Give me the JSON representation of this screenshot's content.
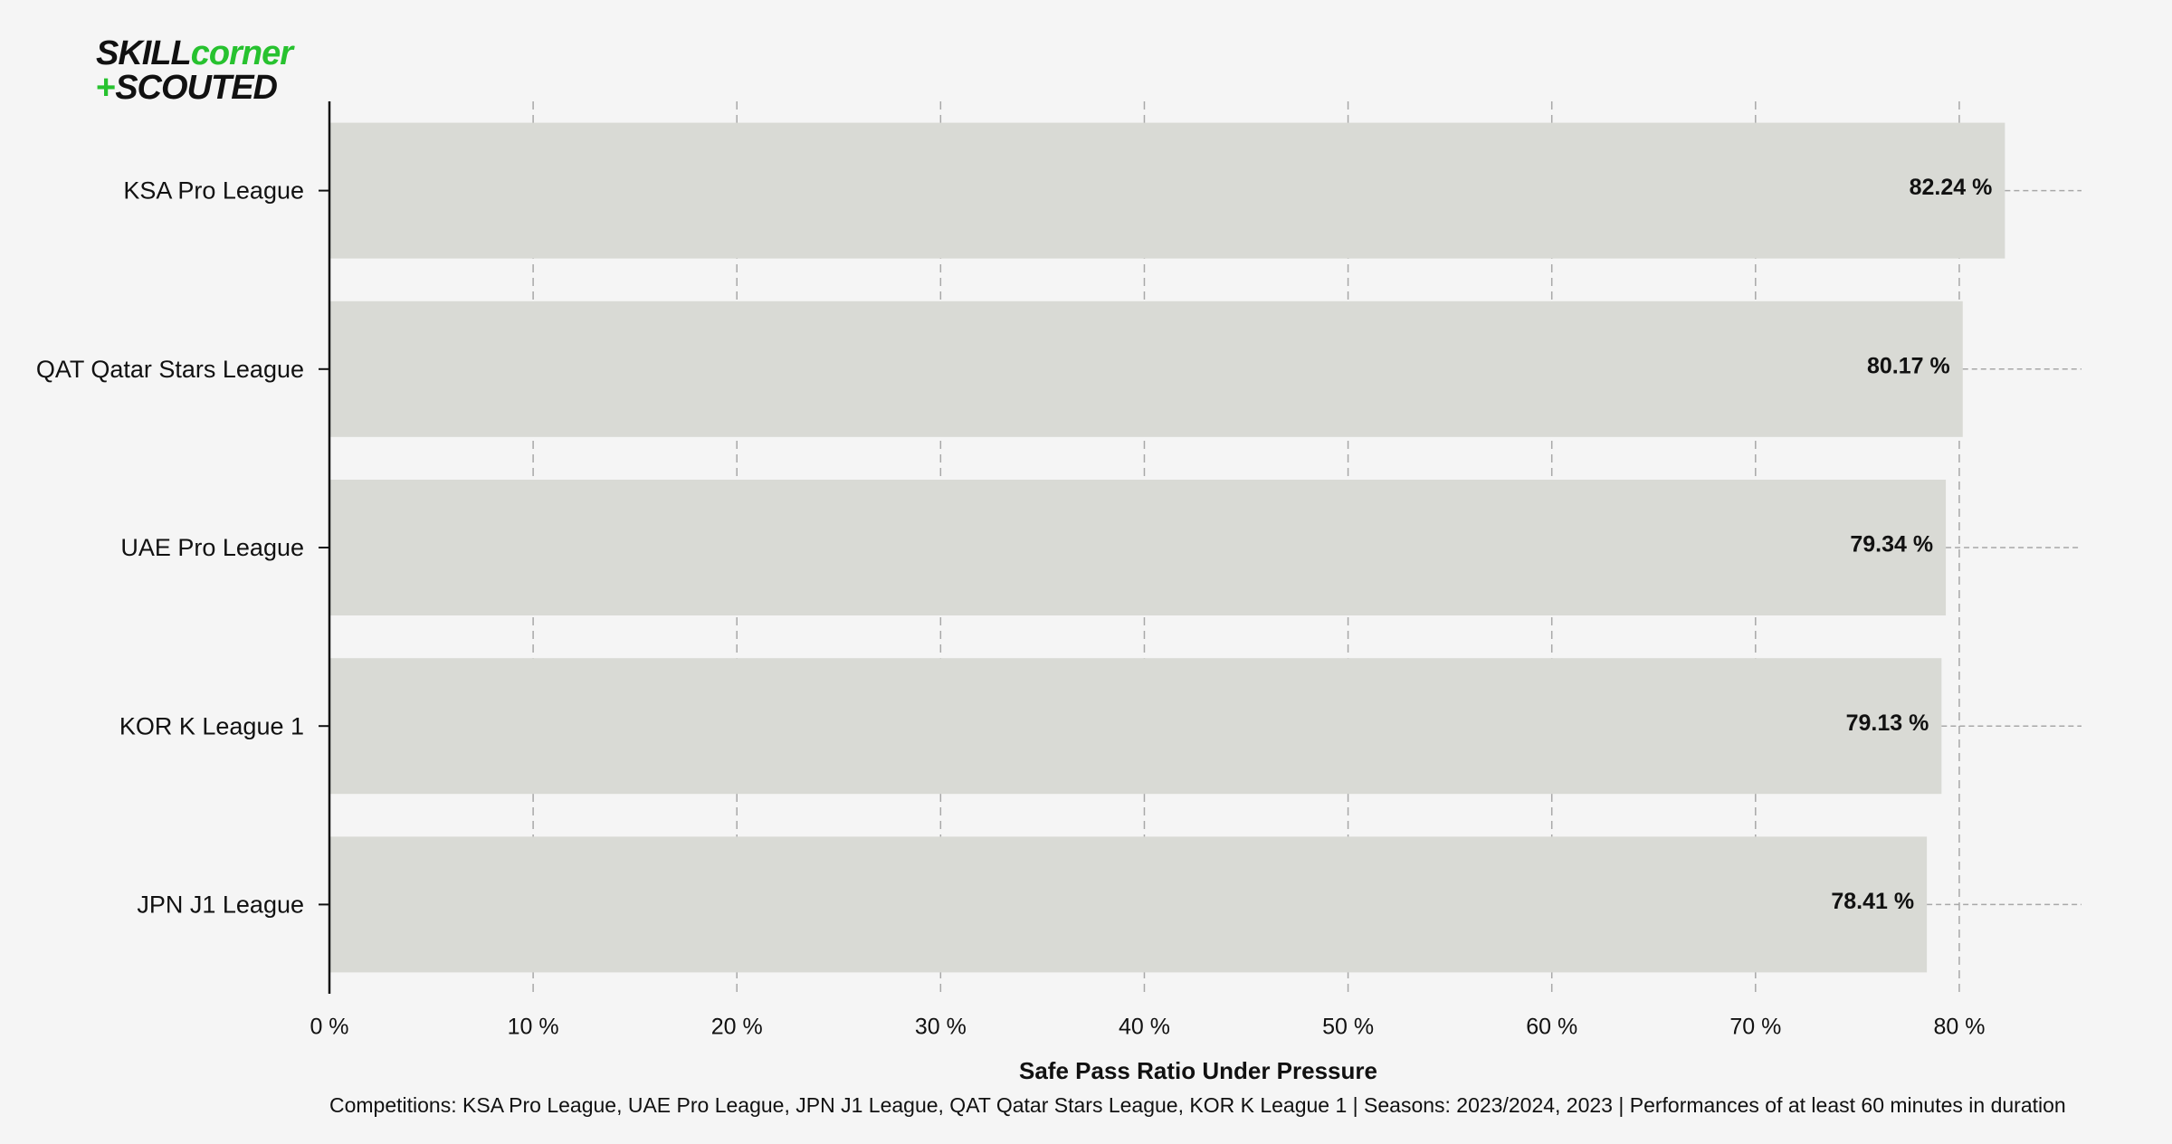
{
  "logo": {
    "line1_a": "SKILL",
    "line1_b": "corner",
    "line2_plus": "+",
    "line2_text": "SCOUTED"
  },
  "chart_data": {
    "type": "bar",
    "orientation": "horizontal",
    "categories": [
      "KSA Pro League",
      "QAT Qatar Stars League",
      "UAE Pro League",
      "KOR K League 1",
      "JPN J1 League"
    ],
    "values": [
      82.24,
      80.17,
      79.34,
      79.13,
      78.41
    ],
    "value_labels": [
      "82.24 %",
      "80.17 %",
      "79.34 %",
      "79.13 %",
      "78.41 %"
    ],
    "xlabel": "Safe Pass Ratio Under Pressure",
    "xlim": [
      0,
      86
    ],
    "xticks": [
      0,
      10,
      20,
      30,
      40,
      50,
      60,
      70,
      80
    ],
    "xtick_labels": [
      "0 %",
      "10 %",
      "20 %",
      "30 %",
      "40 %",
      "50 %",
      "60 %",
      "70 %",
      "80 %"
    ],
    "grid": true,
    "bar_color": "#d9dad5",
    "background_color": "#f5f5f5"
  },
  "footnote": "Competitions: KSA Pro League, UAE Pro League, JPN J1 League, QAT Qatar Stars League, KOR K League 1 | Seasons: 2023/2024, 2023 | Performances of at least 60 minutes in duration"
}
